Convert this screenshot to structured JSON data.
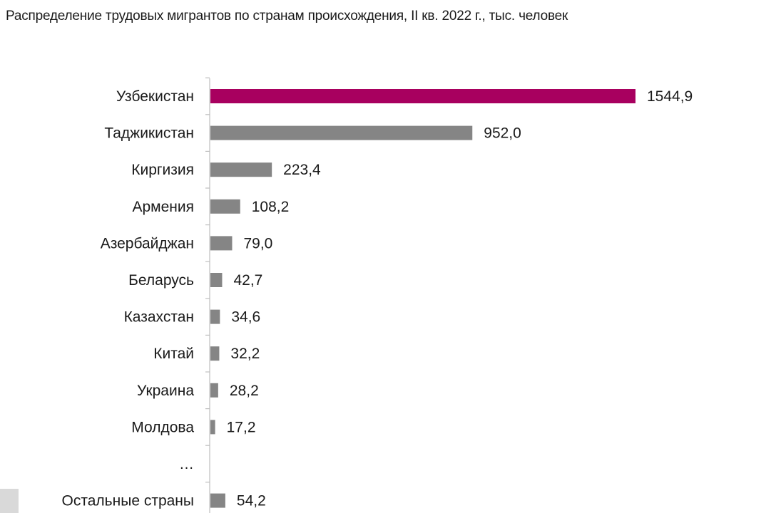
{
  "chart_data": {
    "type": "bar",
    "orientation": "horizontal",
    "title": "Распределение трудовых мигрантов по странам происхождения, II кв. 2022 г., тыс. человек",
    "categories": [
      "Узбекистан",
      "Таджикистан",
      "Киргизия",
      "Армения",
      "Азербайджан",
      "Беларусь",
      "Казахстан",
      "Китай",
      "Украина",
      "Молдова",
      "…",
      "Остальные страны"
    ],
    "values": [
      1544.9,
      952.0,
      223.4,
      108.2,
      79.0,
      42.7,
      34.6,
      32.2,
      28.2,
      17.2,
      null,
      54.2
    ],
    "value_labels": [
      "1544,9",
      "952,0",
      "223,4",
      "108,2",
      "79,0",
      "42,7",
      "34,6",
      "32,2",
      "28,2",
      "17,2",
      "",
      "54,2"
    ],
    "highlight_index": 0,
    "colors": {
      "highlight": "#a8005f",
      "default": "#858585",
      "axis": "#bfbfbf"
    },
    "xlim": [
      0,
      1544.9
    ],
    "grid": false,
    "legend": "none"
  }
}
